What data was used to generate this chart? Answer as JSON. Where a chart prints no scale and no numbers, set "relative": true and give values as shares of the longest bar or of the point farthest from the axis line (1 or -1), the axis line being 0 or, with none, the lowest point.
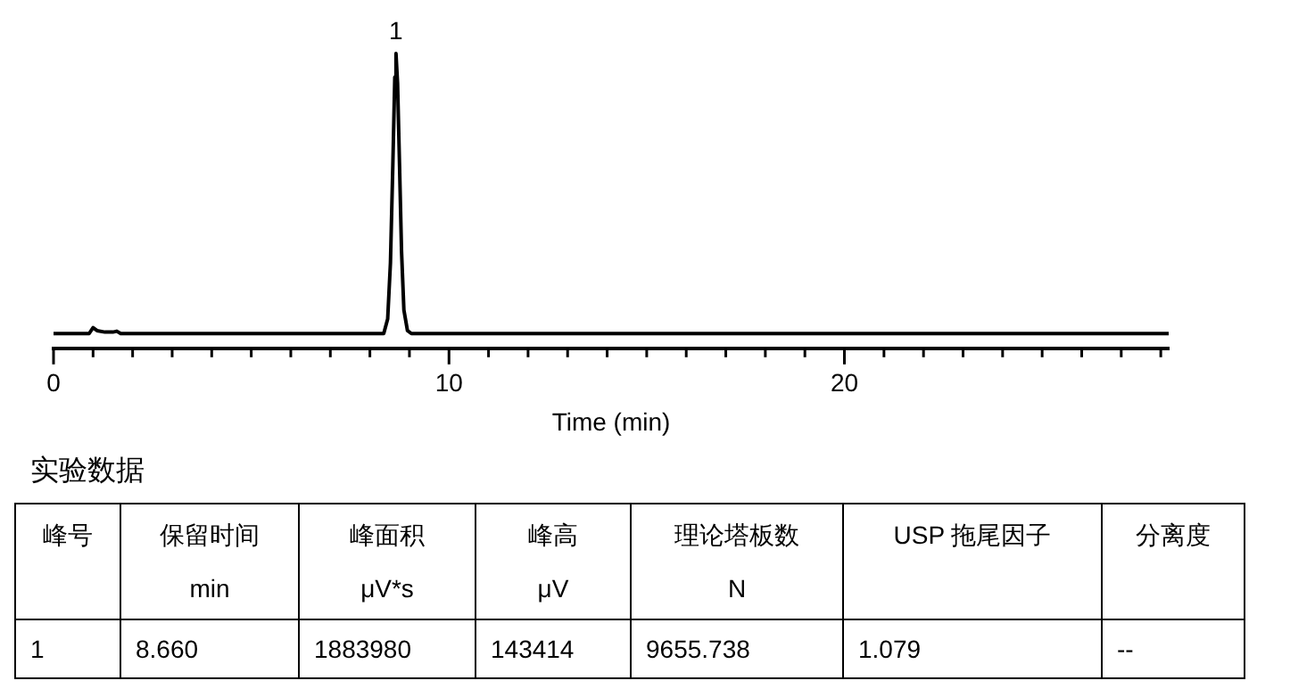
{
  "chart_data": {
    "type": "line",
    "relative": true,
    "xlabel": "Time (min)",
    "color": "#000000",
    "marker": "none",
    "line_style": "solid",
    "legend": false,
    "tick_labels": "x",
    "x": [
      0,
      0.9,
      1.0,
      1.1,
      1.3,
      1.5,
      1.6,
      1.7,
      8.35,
      8.45,
      8.52,
      8.58,
      8.63,
      8.66,
      8.7,
      8.75,
      8.8,
      8.86,
      8.95,
      9.05,
      28.2
    ],
    "values": [
      0.05,
      0.05,
      0.07,
      0.06,
      0.055,
      0.055,
      0.058,
      0.05,
      0.05,
      0.1,
      0.29,
      0.62,
      0.92,
      1,
      0.9,
      0.62,
      0.33,
      0.13,
      0.06,
      0.05,
      0.05
    ],
    "xlim": [
      0,
      28.2
    ],
    "xticks": [
      0,
      {
        "value": 1,
        "label": null
      },
      {
        "value": 2,
        "label": null
      },
      {
        "value": 3,
        "label": null
      },
      {
        "value": 4,
        "label": null
      },
      {
        "value": 5,
        "label": null
      },
      {
        "value": 6,
        "label": null
      },
      {
        "value": 7,
        "label": null
      },
      {
        "value": 8,
        "label": null
      },
      {
        "value": 9,
        "label": null
      },
      10,
      {
        "value": 11,
        "label": null
      },
      {
        "value": 12,
        "label": null
      },
      {
        "value": 13,
        "label": null
      },
      {
        "value": 14,
        "label": null
      },
      {
        "value": 15,
        "label": null
      },
      {
        "value": 16,
        "label": null
      },
      {
        "value": 17,
        "label": null
      },
      {
        "value": 18,
        "label": null
      },
      {
        "value": 19,
        "label": null
      },
      20,
      {
        "value": 21,
        "label": null
      },
      {
        "value": 22,
        "label": null
      },
      {
        "value": 23,
        "label": null
      },
      {
        "value": 24,
        "label": null
      },
      {
        "value": 25,
        "label": null
      },
      {
        "value": 26,
        "label": null
      },
      {
        "value": 27,
        "label": null
      },
      {
        "value": 28,
        "label": null
      }
    ],
    "annotations": [
      {
        "text": "1",
        "x": 8.66,
        "y": 1
      },
      "实验数据",
      "峰号",
      "保留时间\nmin",
      "峰面积\nμV*s",
      "峰高\nμV",
      "理论塔板数\nN",
      "USP 拖尾因子",
      "分离度",
      "1",
      "8.660",
      "1883980",
      "143414",
      "9655.738",
      "1.079",
      "--"
    ]
  }
}
